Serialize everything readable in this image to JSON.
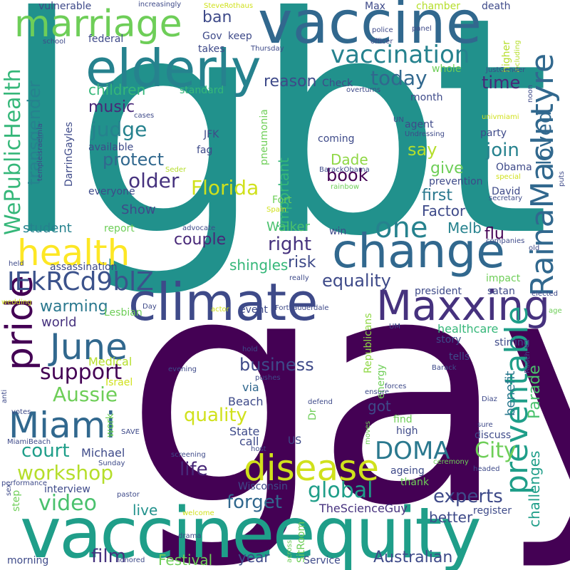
{
  "words": [
    {
      "text": "lgbt",
      "color": "#21918c"
    },
    {
      "text": "gay",
      "color": "#440154"
    },
    {
      "text": "vaccineequity",
      "color": "#1f9e89"
    },
    {
      "text": "vaccine",
      "color": "#31688e"
    },
    {
      "text": "elderly",
      "color": "#26828e"
    },
    {
      "text": "marriage",
      "color": "#6ece58"
    },
    {
      "text": "climate",
      "color": "#3e4a89"
    },
    {
      "text": "change",
      "color": "#31688e"
    },
    {
      "text": "Maxxing",
      "color": "#46327e"
    },
    {
      "text": "RainaMacIntyre",
      "color": "#31688e"
    },
    {
      "text": "preventable",
      "color": "#1f9e89"
    },
    {
      "text": "health",
      "color": "#fde725"
    },
    {
      "text": "disease",
      "color": "#d0e11c"
    },
    {
      "text": "pride",
      "color": "#440154"
    },
    {
      "text": "June",
      "color": "#31688e"
    },
    {
      "text": "Miami",
      "color": "#31688e"
    },
    {
      "text": "vaccination",
      "color": "#26828e"
    },
    {
      "text": "IEkRCd9blZ",
      "color": "#3b528b"
    },
    {
      "text": "WePublicHealth",
      "color": "#35b779"
    },
    {
      "text": "one",
      "color": "#26828e"
    },
    {
      "text": "support",
      "color": "#440154"
    },
    {
      "text": "DOMA",
      "color": "#2a788e"
    },
    {
      "text": "workshop",
      "color": "#b5de2b"
    },
    {
      "text": "global",
      "color": "#1f9e89"
    },
    {
      "text": "video",
      "color": "#4ac16d"
    },
    {
      "text": "transgender",
      "color": "#26828e"
    },
    {
      "text": "Aussie",
      "color": "#6ece58"
    },
    {
      "text": "Florida",
      "color": "#d0e11c"
    },
    {
      "text": "today",
      "color": "#31688e"
    },
    {
      "text": "judge",
      "color": "#26828e"
    },
    {
      "text": "equality",
      "color": "#3e4a89"
    },
    {
      "text": "business",
      "color": "#3e4a89"
    },
    {
      "text": "quality",
      "color": "#d0e11c"
    },
    {
      "text": "experts",
      "color": "#3e4a89"
    },
    {
      "text": "life",
      "color": "#482878"
    },
    {
      "text": "court",
      "color": "#1f9e89"
    },
    {
      "text": "forget",
      "color": "#31688e"
    },
    {
      "text": "loved",
      "color": "#31688e"
    },
    {
      "text": "City",
      "color": "#6ece58"
    },
    {
      "text": "protect",
      "color": "#31688e"
    },
    {
      "text": "older",
      "color": "#46327e"
    },
    {
      "text": "right",
      "color": "#46327e"
    },
    {
      "text": "warming",
      "color": "#2a788e"
    },
    {
      "text": "Australian",
      "color": "#3e4a89"
    },
    {
      "text": "film",
      "color": "#46327e"
    },
    {
      "text": "Festival",
      "color": "#6ece58"
    },
    {
      "text": "year",
      "color": "#3e4a89"
    },
    {
      "text": "children",
      "color": "#35b779"
    },
    {
      "text": "music",
      "color": "#482878"
    },
    {
      "text": "ban",
      "color": "#3e4a89"
    },
    {
      "text": "reason",
      "color": "#3e4a89"
    },
    {
      "text": "time",
      "color": "#482878"
    },
    {
      "text": "say",
      "color": "#b5de2b"
    },
    {
      "text": "join",
      "color": "#26828e"
    },
    {
      "text": "book",
      "color": "#440154"
    },
    {
      "text": "give",
      "color": "#6ece58"
    },
    {
      "text": "Dade",
      "color": "#8fd744"
    },
    {
      "text": "first",
      "color": "#2a788e"
    },
    {
      "text": "Factor",
      "color": "#3e4a89"
    },
    {
      "text": "important",
      "color": "#35b779"
    },
    {
      "text": "couple",
      "color": "#482878"
    },
    {
      "text": "risk",
      "color": "#3e4a89"
    },
    {
      "text": "shingles",
      "color": "#35b779"
    },
    {
      "text": "Walker",
      "color": "#4ac16d"
    },
    {
      "text": "Melb",
      "color": "#26828e"
    },
    {
      "text": "flu",
      "color": "#440154"
    },
    {
      "text": "student",
      "color": "#26828e"
    },
    {
      "text": "Show",
      "color": "#3e4a89"
    },
    {
      "text": "world",
      "color": "#46327e"
    },
    {
      "text": "Parade",
      "color": "#4ac16d"
    },
    {
      "text": "benefit",
      "color": "#2a788e"
    },
    {
      "text": "challenges",
      "color": "#1f9e89"
    },
    {
      "text": "better",
      "color": "#3e4a89"
    },
    {
      "text": "live",
      "color": "#21918c"
    },
    {
      "text": "got",
      "color": "#3e4a89"
    },
    {
      "text": "interview",
      "color": "#3e4a89"
    },
    {
      "text": "Wisconsin",
      "color": "#3e4a89"
    },
    {
      "text": "TheScienceGuy",
      "color": "#46327e"
    },
    {
      "text": "healthcare",
      "color": "#35b779"
    },
    {
      "text": "Republicans",
      "color": "#8fd744"
    },
    {
      "text": "energy",
      "color": "#6ece58"
    },
    {
      "text": "Beach",
      "color": "#3e4a89"
    },
    {
      "text": "via",
      "color": "#31688e"
    },
    {
      "text": "State",
      "color": "#3e4a89"
    },
    {
      "text": "call",
      "color": "#3e4a89"
    },
    {
      "text": "Michael",
      "color": "#3e4a89"
    },
    {
      "text": "Medical",
      "color": "#b5de2b"
    },
    {
      "text": "Israel",
      "color": "#d0e11c"
    },
    {
      "text": "Lesbian",
      "color": "#6ece58"
    },
    {
      "text": "event",
      "color": "#3e4a89"
    },
    {
      "text": "vulnerable",
      "color": "#3e4a89"
    },
    {
      "text": "increasingly",
      "color": "#3e4a89"
    },
    {
      "text": "SteveRothaus",
      "color": "#d0e11c"
    },
    {
      "text": "Max",
      "color": "#3e4a89"
    },
    {
      "text": "chamber",
      "color": "#b5de2b"
    },
    {
      "text": "death",
      "color": "#3e4a89"
    },
    {
      "text": "federal",
      "color": "#3e4a89"
    },
    {
      "text": "Gov",
      "color": "#3e4a89"
    },
    {
      "text": "keep",
      "color": "#3e4a89"
    },
    {
      "text": "takes",
      "color": "#3e4a89"
    },
    {
      "text": "standard",
      "color": "#35b779"
    },
    {
      "text": "Thursday",
      "color": "#3e4a89"
    },
    {
      "text": "officer",
      "color": "#3e4a89"
    },
    {
      "text": "police",
      "color": "#3e4a89"
    },
    {
      "text": "panel",
      "color": "#3e4a89"
    },
    {
      "text": "school",
      "color": "#3e4a89"
    },
    {
      "text": "Check",
      "color": "#3e4a89"
    },
    {
      "text": "overturns",
      "color": "#3e4a89"
    },
    {
      "text": "month",
      "color": "#3e4a89"
    },
    {
      "text": "whole",
      "color": "#6ece58"
    },
    {
      "text": "higher",
      "color": "#b5de2b"
    },
    {
      "text": "including",
      "color": "#b5de2b"
    },
    {
      "text": "JustGender",
      "color": "#3e4a89"
    },
    {
      "text": "noon",
      "color": "#3e4a89"
    },
    {
      "text": "univmiami",
      "color": "#d0e11c"
    },
    {
      "text": "UN",
      "color": "#3e4a89"
    },
    {
      "text": "agent",
      "color": "#3e4a89"
    },
    {
      "text": "Undressing",
      "color": "#3e4a89"
    },
    {
      "text": "party",
      "color": "#3e4a89"
    },
    {
      "text": "cases",
      "color": "#3e4a89"
    },
    {
      "text": "templeisraelmia",
      "color": "#3e4a89"
    },
    {
      "text": "DarrinGayles",
      "color": "#3e4a89"
    },
    {
      "text": "JFK",
      "color": "#3e4a89"
    },
    {
      "text": "fag",
      "color": "#3e4a89"
    },
    {
      "text": "available",
      "color": "#3e4a89"
    },
    {
      "text": "everyone",
      "color": "#3e4a89"
    },
    {
      "text": "Seder",
      "color": "#b5de2b"
    },
    {
      "text": "coming",
      "color": "#3e4a89"
    },
    {
      "text": "pneumonia",
      "color": "#6ece58"
    },
    {
      "text": "BarackObama",
      "color": "#3e4a89"
    },
    {
      "text": "Obama",
      "color": "#3e4a89"
    },
    {
      "text": "special",
      "color": "#d0e11c"
    },
    {
      "text": "puts",
      "color": "#3e4a89"
    },
    {
      "text": "prevention",
      "color": "#3e4a89"
    },
    {
      "text": "David",
      "color": "#3e4a89"
    },
    {
      "text": "rainbow",
      "color": "#6ece58"
    },
    {
      "text": "Fort",
      "color": "#6ece58"
    },
    {
      "text": "Spain",
      "color": "#d0e11c"
    },
    {
      "text": "secretary",
      "color": "#3e4a89"
    },
    {
      "text": "report",
      "color": "#6ece58"
    },
    {
      "text": "advocate",
      "color": "#3e4a89"
    },
    {
      "text": "win",
      "color": "#3e4a89"
    },
    {
      "text": "companies",
      "color": "#3e4a89"
    },
    {
      "text": "old",
      "color": "#3e4a89"
    },
    {
      "text": "held",
      "color": "#3e4a89"
    },
    {
      "text": "assassination",
      "color": "#3e4a89"
    },
    {
      "text": "really",
      "color": "#3e4a89"
    },
    {
      "text": "impact",
      "color": "#6ece58"
    },
    {
      "text": "president",
      "color": "#3e4a89"
    },
    {
      "text": "satan",
      "color": "#3e4a89"
    },
    {
      "text": "elected",
      "color": "#3e4a89"
    },
    {
      "text": "wedding",
      "color": "#d0e11c"
    },
    {
      "text": "Day",
      "color": "#3e4a89"
    },
    {
      "text": "age",
      "color": "#6ece58"
    },
    {
      "text": "actor",
      "color": "#d0e11c"
    },
    {
      "text": "FortLauderdale",
      "color": "#3e4a89"
    },
    {
      "text": "UM",
      "color": "#3e4a89"
    },
    {
      "text": "story",
      "color": "#3e4a89"
    },
    {
      "text": "tells",
      "color": "#3e4a89"
    },
    {
      "text": "stirring",
      "color": "#3e4a89"
    },
    {
      "text": "Ruach",
      "color": "#3e4a89"
    },
    {
      "text": "Barack",
      "color": "#3e4a89"
    },
    {
      "text": "hold",
      "color": "#3e4a89"
    },
    {
      "text": "evening",
      "color": "#3e4a89"
    },
    {
      "text": "pushes",
      "color": "#3e4a89"
    },
    {
      "text": "forces",
      "color": "#3e4a89"
    },
    {
      "text": "ensure",
      "color": "#3e4a89"
    },
    {
      "text": "anti",
      "color": "#3e4a89"
    },
    {
      "text": "votes",
      "color": "#3e4a89"
    },
    {
      "text": "defend",
      "color": "#3e4a89"
    },
    {
      "text": "Dr",
      "color": "#6ece58"
    },
    {
      "text": "Diaz",
      "color": "#3e4a89"
    },
    {
      "text": "sure",
      "color": "#3e4a89"
    },
    {
      "text": "headed",
      "color": "#3e4a89"
    },
    {
      "text": "work",
      "color": "#6ece58"
    },
    {
      "text": "SAVE",
      "color": "#3e4a89"
    },
    {
      "text": "MiamiBeach",
      "color": "#3e4a89"
    },
    {
      "text": "US",
      "color": "#3e4a89"
    },
    {
      "text": "find",
      "color": "#6ece58"
    },
    {
      "text": "high",
      "color": "#3e4a89"
    },
    {
      "text": "discuss",
      "color": "#3e4a89"
    },
    {
      "text": "moves",
      "color": "#6ece58"
    },
    {
      "text": "host",
      "color": "#3e4a89"
    },
    {
      "text": "screening",
      "color": "#3e4a89"
    },
    {
      "text": "Sunday",
      "color": "#3e4a89"
    },
    {
      "text": "ageing",
      "color": "#3e4a89"
    },
    {
      "text": "ceremony",
      "color": "#6ece58"
    },
    {
      "text": "performance",
      "color": "#3e4a89"
    },
    {
      "text": "sex",
      "color": "#3e4a89"
    },
    {
      "text": "pastor",
      "color": "#3e4a89"
    },
    {
      "text": "thank",
      "color": "#6ece58"
    },
    {
      "text": "step",
      "color": "#6ece58"
    },
    {
      "text": "welcome",
      "color": "#d0e11c"
    },
    {
      "text": "register",
      "color": "#3e4a89"
    },
    {
      "text": "drama",
      "color": "#3e4a89"
    },
    {
      "text": "SitRoom",
      "color": "#6ece58"
    },
    {
      "text": "across",
      "color": "#6ece58"
    },
    {
      "text": "morning",
      "color": "#3e4a89"
    },
    {
      "text": "honored",
      "color": "#3e4a89"
    },
    {
      "text": "Service",
      "color": "#3e4a89"
    }
  ]
}
